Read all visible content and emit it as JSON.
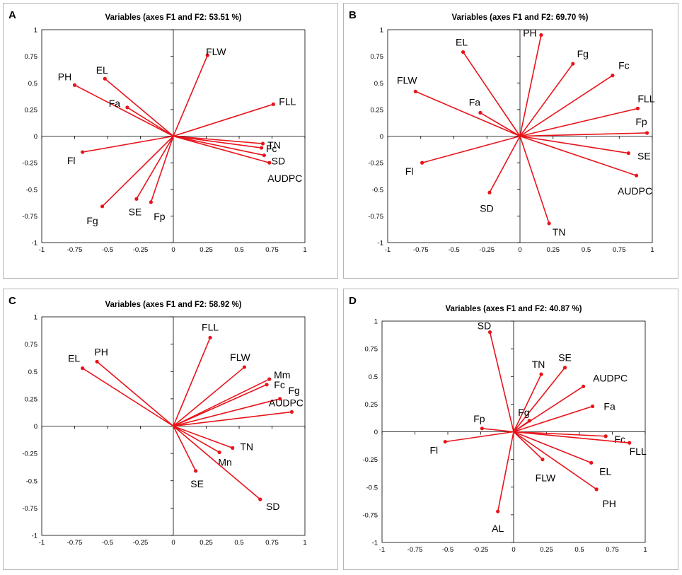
{
  "chart_data": [
    {
      "type": "scatter",
      "panel_letter": "A",
      "title": "Variables (axes F1 and F2: 53.51 %)",
      "xlim": [
        -1,
        1
      ],
      "ylim": [
        -1,
        1
      ],
      "xticks": [
        "-1",
        "-0.75",
        "-0.5",
        "-0.25",
        "0",
        "0.25",
        "0.5",
        "0.75",
        "1"
      ],
      "yticks": [
        "-1",
        "-0.75",
        "-0.5",
        "-0.25",
        "0",
        "0.25",
        "0.5",
        "0.75",
        "1"
      ],
      "colors": {
        "vector": "#e8141b",
        "axis": "#000000",
        "frame": "#b5b5b5",
        "text": "#000000"
      },
      "variables": [
        {
          "name": "PH",
          "x": -0.75,
          "y": 0.48
        },
        {
          "name": "EL",
          "x": -0.52,
          "y": 0.54
        },
        {
          "name": "Fa",
          "x": -0.35,
          "y": 0.27
        },
        {
          "name": "FLW",
          "x": 0.26,
          "y": 0.76
        },
        {
          "name": "FLL",
          "x": 0.76,
          "y": 0.3
        },
        {
          "name": "TN",
          "x": 0.68,
          "y": -0.07
        },
        {
          "name": "Fc",
          "x": 0.67,
          "y": -0.11
        },
        {
          "name": "SD",
          "x": 0.69,
          "y": -0.18
        },
        {
          "name": "AUDPC",
          "x": 0.73,
          "y": -0.25
        },
        {
          "name": "Fl",
          "x": -0.69,
          "y": -0.15
        },
        {
          "name": "Fg",
          "x": -0.54,
          "y": -0.66
        },
        {
          "name": "SE",
          "x": -0.28,
          "y": -0.59
        },
        {
          "name": "Fp",
          "x": -0.17,
          "y": -0.62
        }
      ]
    },
    {
      "type": "scatter",
      "panel_letter": "B",
      "title": "Variables (axes F1 and F2: 69.70 %)",
      "xlim": [
        -1,
        1
      ],
      "ylim": [
        -1,
        1
      ],
      "xticks": [
        "-1",
        "-0.75",
        "-0.5",
        "-0.25",
        "0",
        "0.25",
        "0.5",
        "0.75",
        "1"
      ],
      "yticks": [
        "-1",
        "-0.75",
        "-0.5",
        "-0.25",
        "0",
        "0.25",
        "0.5",
        "0.75",
        "1"
      ],
      "colors": {
        "vector": "#e8141b",
        "axis": "#000000",
        "frame": "#b5b5b5",
        "text": "#000000"
      },
      "variables": [
        {
          "name": "EL",
          "x": -0.43,
          "y": 0.79
        },
        {
          "name": "PH",
          "x": 0.16,
          "y": 0.95
        },
        {
          "name": "Fg",
          "x": 0.4,
          "y": 0.68
        },
        {
          "name": "Fc",
          "x": 0.7,
          "y": 0.57
        },
        {
          "name": "FLW",
          "x": -0.79,
          "y": 0.42
        },
        {
          "name": "Fa",
          "x": -0.3,
          "y": 0.22
        },
        {
          "name": "FLL",
          "x": 0.89,
          "y": 0.26
        },
        {
          "name": "Fp",
          "x": 0.96,
          "y": 0.03
        },
        {
          "name": "SE",
          "x": 0.82,
          "y": -0.16
        },
        {
          "name": "AUDPC",
          "x": 0.88,
          "y": -0.37
        },
        {
          "name": "Fl",
          "x": -0.74,
          "y": -0.25
        },
        {
          "name": "SD",
          "x": -0.23,
          "y": -0.53
        },
        {
          "name": "TN",
          "x": 0.22,
          "y": -0.82
        }
      ]
    },
    {
      "type": "scatter",
      "panel_letter": "C",
      "title": "Variables (axes F1 and F2: 58.92 %)",
      "xlim": [
        -1,
        1
      ],
      "ylim": [
        -1,
        1
      ],
      "xticks": [
        "-1",
        "-0.75",
        "-0.5",
        "-0.25",
        "0",
        "0.25",
        "0.5",
        "0.75",
        "1"
      ],
      "yticks": [
        "-1",
        "-0.75",
        "-0.5",
        "-0.25",
        "0",
        "0.25",
        "0.5",
        "0.75",
        "1"
      ],
      "colors": {
        "vector": "#e8141b",
        "axis": "#000000",
        "frame": "#b5b5b5",
        "text": "#000000"
      },
      "variables": [
        {
          "name": "EL",
          "x": -0.69,
          "y": 0.53
        },
        {
          "name": "PH",
          "x": -0.58,
          "y": 0.59
        },
        {
          "name": "FLL",
          "x": 0.28,
          "y": 0.81
        },
        {
          "name": "FLW",
          "x": 0.54,
          "y": 0.54
        },
        {
          "name": "Mm",
          "x": 0.73,
          "y": 0.43
        },
        {
          "name": "Fc",
          "x": 0.71,
          "y": 0.38
        },
        {
          "name": "Fg",
          "x": 0.81,
          "y": 0.25
        },
        {
          "name": "AUDPC",
          "x": 0.9,
          "y": 0.13
        },
        {
          "name": "TN",
          "x": 0.45,
          "y": -0.2
        },
        {
          "name": "Mn",
          "x": 0.35,
          "y": -0.24
        },
        {
          "name": "SE",
          "x": 0.17,
          "y": -0.41
        },
        {
          "name": "SD",
          "x": 0.66,
          "y": -0.67
        }
      ]
    },
    {
      "type": "scatter",
      "panel_letter": "D",
      "title": "Variables (axes F1 and F2: 40.87 %)",
      "xlim": [
        -1,
        1
      ],
      "ylim": [
        -1,
        1
      ],
      "xticks": [
        "-1",
        "-0.75",
        "-0.5",
        "-0.25",
        "0",
        "0.25",
        "0.5",
        "0.75",
        "1"
      ],
      "yticks": [
        "-1",
        "-0.75",
        "-0.5",
        "-0.25",
        "0",
        "0.25",
        "0.5",
        "0.75",
        "1"
      ],
      "colors": {
        "vector": "#e8141b",
        "axis": "#000000",
        "frame": "#b5b5b5",
        "text": "#000000"
      },
      "variables": [
        {
          "name": "SD",
          "x": -0.18,
          "y": 0.9
        },
        {
          "name": "TN",
          "x": 0.21,
          "y": 0.52
        },
        {
          "name": "SE",
          "x": 0.39,
          "y": 0.58
        },
        {
          "name": "AUDPC",
          "x": 0.53,
          "y": 0.41
        },
        {
          "name": "Fa",
          "x": 0.6,
          "y": 0.23
        },
        {
          "name": "Fg",
          "x": 0.12,
          "y": 0.1
        },
        {
          "name": "Fp",
          "x": -0.24,
          "y": 0.03
        },
        {
          "name": "Fl",
          "x": -0.52,
          "y": -0.09
        },
        {
          "name": "Fc",
          "x": 0.7,
          "y": -0.04
        },
        {
          "name": "FLL",
          "x": 0.88,
          "y": -0.1
        },
        {
          "name": "FLW",
          "x": 0.22,
          "y": -0.25
        },
        {
          "name": "EL",
          "x": 0.59,
          "y": -0.28
        },
        {
          "name": "PH",
          "x": 0.63,
          "y": -0.52
        },
        {
          "name": "AL",
          "x": -0.12,
          "y": -0.72
        }
      ]
    }
  ]
}
